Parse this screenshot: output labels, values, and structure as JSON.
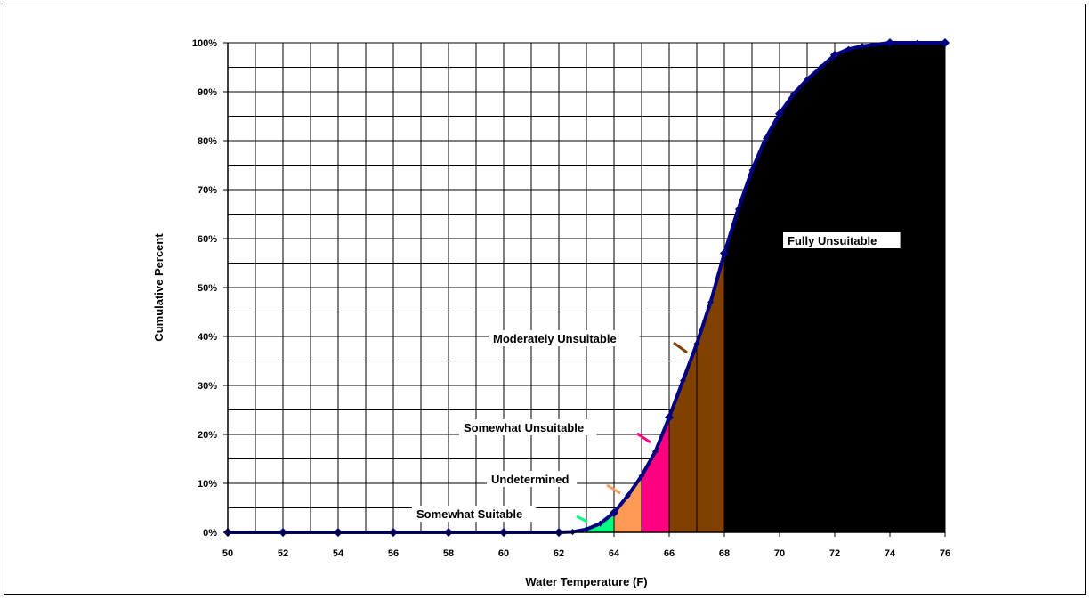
{
  "chart_data": {
    "type": "area",
    "xlabel": "Water Temperature (F)",
    "ylabel": "Cumulative Percent",
    "xlim": [
      50,
      76
    ],
    "ylim": [
      0,
      100
    ],
    "x_ticks": [
      "50",
      "52",
      "54",
      "56",
      "58",
      "60",
      "62",
      "64",
      "66",
      "68",
      "70",
      "72",
      "74",
      "76"
    ],
    "y_ticks": [
      "0%",
      "10%",
      "20%",
      "30%",
      "40%",
      "50%",
      "60%",
      "70%",
      "80%",
      "90%",
      "100%"
    ],
    "grid": "major and minor, on",
    "curve_color": "#000080",
    "x": [
      50,
      52,
      54,
      56,
      58,
      60,
      62,
      62.5,
      63,
      63.5,
      64,
      64.5,
      65,
      65.5,
      66,
      66.5,
      67,
      67.5,
      68,
      68.5,
      69,
      69.5,
      70,
      70.5,
      71,
      71.5,
      72,
      72.5,
      73,
      74,
      75,
      76
    ],
    "y": [
      0,
      0,
      0,
      0,
      0,
      0,
      0,
      0.1,
      0.6,
      1.8,
      4,
      7.5,
      11.5,
      16.5,
      23.5,
      31,
      38.5,
      47,
      57,
      66,
      74,
      80.5,
      85.5,
      89.5,
      92.5,
      95,
      97.5,
      98.7,
      99.3,
      100,
      100,
      100
    ],
    "markers_x": [
      50,
      52,
      54,
      56,
      58,
      60,
      62,
      64,
      66,
      68,
      70,
      72,
      74,
      76
    ],
    "bands": [
      {
        "name": "Somewhat Suitable",
        "from": 63,
        "to": 64,
        "color": "#00ff80"
      },
      {
        "name": "Undetermined",
        "from": 64,
        "to": 65,
        "color": "#ff9955"
      },
      {
        "name": "Somewhat Unsuitable",
        "from": 65,
        "to": 66,
        "color": "#ff0080"
      },
      {
        "name": "Moderately Unsuitable",
        "from": 66,
        "to": 68,
        "color": "#804000"
      },
      {
        "name": "Fully Unsuitable",
        "from": 68,
        "to": 76,
        "color": "#000000"
      }
    ],
    "annotations": {
      "somewhat_suitable": "Somewhat Suitable",
      "undetermined": "Undetermined",
      "somewhat_unsuitable": "Somewhat Unsuitable",
      "moderately_unsuitable": "Moderately Unsuitable",
      "fully_unsuitable": "Fully Unsuitable"
    }
  }
}
